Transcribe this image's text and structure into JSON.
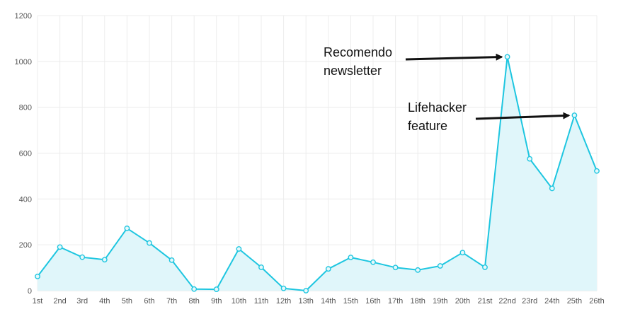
{
  "chart_data": {
    "type": "area",
    "categories": [
      "1st",
      "2nd",
      "3rd",
      "4th",
      "5th",
      "6th",
      "7th",
      "8th",
      "9th",
      "10th",
      "11th",
      "12th",
      "13th",
      "14th",
      "15th",
      "16th",
      "17th",
      "18th",
      "19th",
      "20th",
      "21st",
      "22nd",
      "23rd",
      "24th",
      "25th",
      "26th"
    ],
    "series": [
      {
        "values": [
          62,
          190,
          146,
          135,
          272,
          208,
          133,
          7,
          6,
          182,
          102,
          10,
          0,
          95,
          145,
          124,
          101,
          90,
          108,
          166,
          102,
          1020,
          575,
          446,
          765,
          522
        ]
      }
    ],
    "y_ticks": [
      "0",
      "200",
      "400",
      "600",
      "800",
      "1000",
      "1200"
    ],
    "ylim": [
      0,
      1200
    ],
    "grid": true,
    "legend": "none",
    "colors": {
      "line": "#1ec6e0",
      "fill": "#e0f6fa"
    },
    "annotations": [
      {
        "lines": [
          "Recomendo",
          "newsletter"
        ],
        "target_category": "22nd",
        "target_value": 1020
      },
      {
        "lines": [
          "Lifehacker",
          "feature"
        ],
        "target_category": "25th",
        "target_value": 765
      }
    ]
  }
}
